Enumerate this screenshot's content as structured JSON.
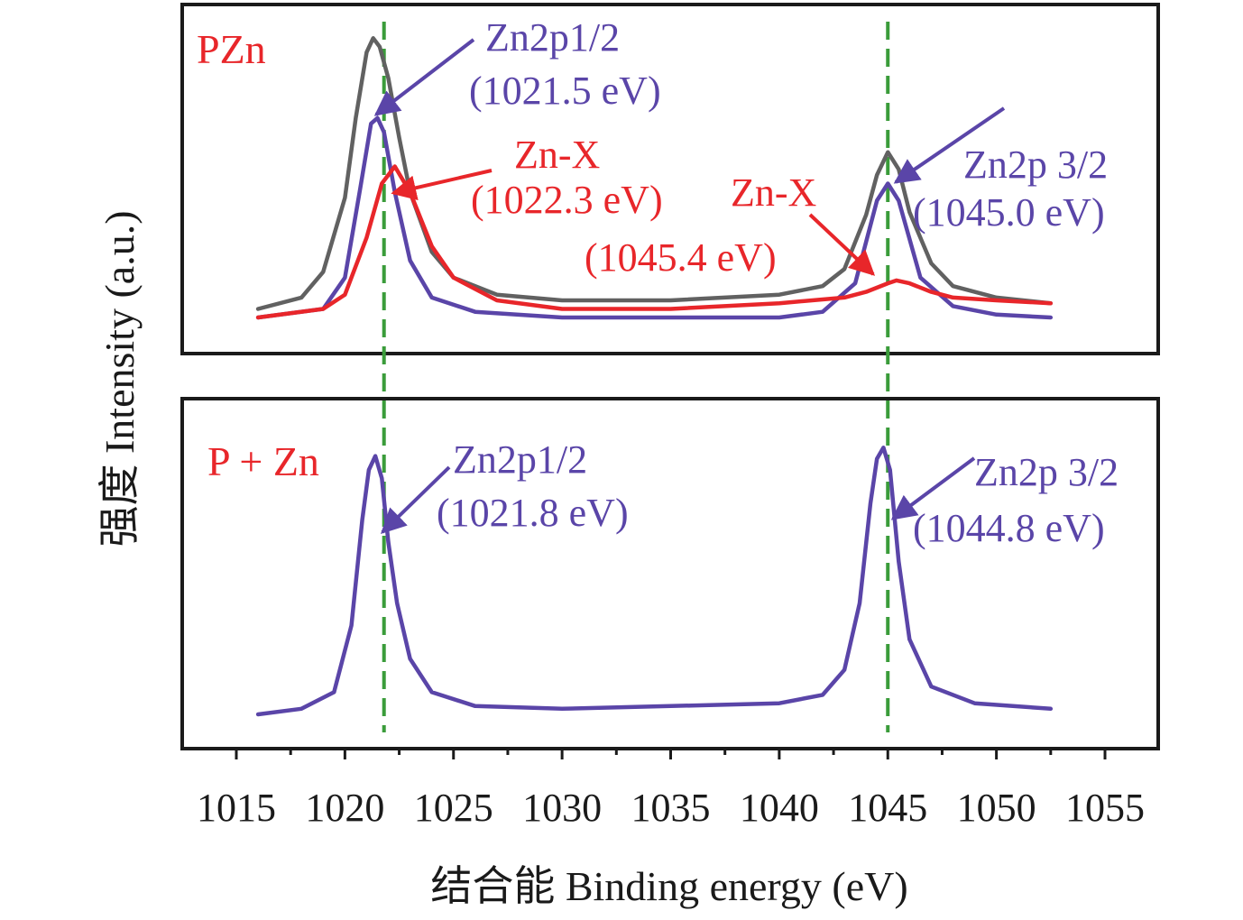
{
  "chart_data": {
    "type": "line",
    "xlabel": "结合能 Binding energy (eV)",
    "ylabel": "强度 Intensity (a.u.)",
    "xlim": [
      1013,
      1058
    ],
    "xticks": [
      1015,
      1020,
      1025,
      1030,
      1035,
      1040,
      1045,
      1050,
      1055
    ],
    "grid": false,
    "reference_lines": [
      1021.8,
      1045.0
    ],
    "panels": [
      {
        "label": "PZn",
        "series": [
          {
            "name": "",
            "color": "#616161",
            "x": [
              1016,
              1018,
              1019,
              1020,
              1020.5,
              1021,
              1021.3,
              1021.6,
              1022,
              1022.5,
              1023,
              1024,
              1025,
              1027,
              1030,
              1035,
              1040,
              1042,
              1043,
              1044,
              1044.5,
              1045,
              1045.5,
              1046,
              1047,
              1048,
              1050,
              1052.5
            ],
            "y": [
              0.03,
              0.07,
              0.16,
              0.42,
              0.7,
              0.93,
              0.98,
              0.95,
              0.84,
              0.63,
              0.44,
              0.23,
              0.14,
              0.08,
              0.06,
              0.06,
              0.08,
              0.11,
              0.17,
              0.36,
              0.5,
              0.58,
              0.52,
              0.37,
              0.19,
              0.11,
              0.07,
              0.05
            ]
          },
          {
            "name": "",
            "color": "#5a45a8",
            "x": [
              1016,
              1019,
              1020,
              1020.7,
              1021.2,
              1021.5,
              1021.8,
              1022.3,
              1023,
              1024,
              1026,
              1030,
              1035,
              1040,
              1042,
              1043.5,
              1044.5,
              1045,
              1045.5,
              1046.5,
              1048,
              1050,
              1052.5
            ],
            "y": [
              0.0,
              0.03,
              0.14,
              0.45,
              0.68,
              0.7,
              0.65,
              0.44,
              0.2,
              0.07,
              0.02,
              0.0,
              0.0,
              0.0,
              0.02,
              0.12,
              0.41,
              0.47,
              0.41,
              0.14,
              0.04,
              0.01,
              0.0
            ]
          },
          {
            "name": "",
            "color": "#e8262a",
            "x": [
              1016,
              1019,
              1020,
              1021,
              1021.7,
              1022.3,
              1023,
              1024,
              1025,
              1027,
              1030,
              1035,
              1040,
              1043,
              1044,
              1045,
              1045.4,
              1046,
              1047,
              1048,
              1050,
              1052.5
            ],
            "y": [
              0.0,
              0.03,
              0.08,
              0.28,
              0.47,
              0.53,
              0.44,
              0.25,
              0.14,
              0.06,
              0.03,
              0.03,
              0.05,
              0.07,
              0.09,
              0.12,
              0.13,
              0.12,
              0.09,
              0.07,
              0.06,
              0.05
            ]
          }
        ],
        "annotations": [
          {
            "text1": "Zn2p1/2",
            "text2": "(1021.5 eV)",
            "color": "#5a45a8"
          },
          {
            "text1": "Zn-X",
            "text2": "(1022.3 eV)",
            "color": "#e8262a"
          },
          {
            "text1": "Zn-X",
            "text2": "(1045.4 eV)",
            "color": "#e8262a"
          },
          {
            "text1": "Zn2p 3/2",
            "text2": "(1045.0 eV)",
            "color": "#5a45a8"
          }
        ]
      },
      {
        "label": "P + Zn",
        "series": [
          {
            "name": "",
            "color": "#5a45a8",
            "x": [
              1016,
              1018,
              1019.5,
              1020.3,
              1020.8,
              1021.1,
              1021.4,
              1021.7,
              1022,
              1022.4,
              1023,
              1024,
              1026,
              1030,
              1035,
              1040,
              1042,
              1043,
              1043.7,
              1044.2,
              1044.5,
              1044.8,
              1045.1,
              1045.5,
              1046,
              1047,
              1049,
              1052.5
            ],
            "y": [
              0.0,
              0.02,
              0.08,
              0.32,
              0.7,
              0.88,
              0.93,
              0.85,
              0.62,
              0.4,
              0.2,
              0.08,
              0.03,
              0.02,
              0.03,
              0.04,
              0.07,
              0.16,
              0.4,
              0.76,
              0.92,
              0.96,
              0.88,
              0.55,
              0.27,
              0.1,
              0.04,
              0.02
            ]
          }
        ],
        "annotations": [
          {
            "text1": "Zn2p1/2",
            "text2": "(1021.8 eV)",
            "color": "#5a45a8"
          },
          {
            "text1": "Zn2p 3/2",
            "text2": "(1044.8 eV)",
            "color": "#5a45a8"
          }
        ]
      }
    ]
  }
}
